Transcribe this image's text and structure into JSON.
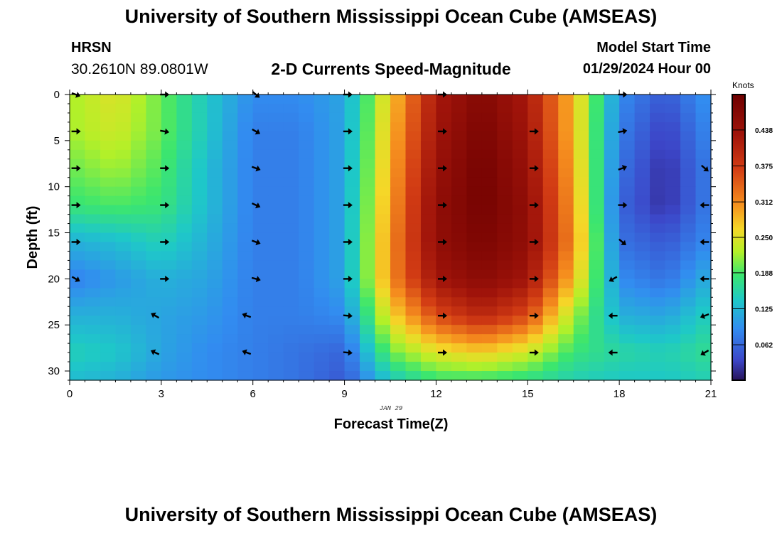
{
  "header": {
    "title": "University of Southern Mississippi Ocean Cube (AMSEAS)",
    "station": "HRSN",
    "coordinates": "30.2610N  89.0801W",
    "subtitle": "2-D Currents Speed-Magnitude",
    "model_start_label": "Model Start Time",
    "model_start_value": "01/29/2024 Hour 00"
  },
  "footer": {
    "title": "University of Southern Mississippi Ocean Cube (AMSEAS)"
  },
  "chart_data": {
    "type": "heatmap",
    "title": "2-D Currents Speed-Magnitude",
    "xlabel": "Forecast Time(Z)",
    "ylabel": "Depth (ft)",
    "date_label": "JAN 29",
    "xlim": [
      0,
      21
    ],
    "ylim": [
      0,
      31
    ],
    "x_ticks": [
      0,
      3,
      6,
      9,
      12,
      15,
      18,
      21
    ],
    "y_ticks": [
      0,
      5,
      10,
      15,
      20,
      25,
      30
    ],
    "colorbar": {
      "label": "Knots",
      "range": [
        0,
        0.5
      ],
      "ticks": [
        0.062,
        0.125,
        0.188,
        0.25,
        0.312,
        0.375,
        0.438
      ],
      "tick_labels": [
        "0.062",
        "0.125",
        "0.188",
        "0.250",
        "0.312",
        "0.375",
        "0.438"
      ]
    },
    "time_hours": [
      0,
      1.5,
      3,
      4.5,
      6,
      7.5,
      9,
      10.5,
      12,
      13.5,
      15,
      16.5,
      18,
      19.5,
      21
    ],
    "depths_ft": [
      0,
      4,
      8,
      12,
      16,
      20,
      24,
      28,
      31
    ],
    "speed_knots": [
      [
        0.22,
        0.25,
        0.2,
        0.14,
        0.09,
        0.09,
        0.11,
        0.27,
        0.42,
        0.47,
        0.42,
        0.28,
        0.09,
        0.05,
        0.1
      ],
      [
        0.22,
        0.24,
        0.2,
        0.14,
        0.08,
        0.08,
        0.11,
        0.28,
        0.43,
        0.48,
        0.43,
        0.28,
        0.08,
        0.03,
        0.09
      ],
      [
        0.2,
        0.22,
        0.19,
        0.13,
        0.08,
        0.08,
        0.11,
        0.29,
        0.44,
        0.49,
        0.44,
        0.29,
        0.07,
        0.02,
        0.08
      ],
      [
        0.18,
        0.19,
        0.18,
        0.13,
        0.08,
        0.08,
        0.11,
        0.3,
        0.45,
        0.49,
        0.45,
        0.3,
        0.06,
        0.02,
        0.08
      ],
      [
        0.12,
        0.13,
        0.15,
        0.12,
        0.08,
        0.08,
        0.11,
        0.31,
        0.45,
        0.48,
        0.45,
        0.31,
        0.07,
        0.05,
        0.09
      ],
      [
        0.08,
        0.1,
        0.12,
        0.11,
        0.08,
        0.08,
        0.11,
        0.31,
        0.43,
        0.46,
        0.43,
        0.28,
        0.09,
        0.07,
        0.12
      ],
      [
        0.12,
        0.12,
        0.11,
        0.1,
        0.08,
        0.08,
        0.09,
        0.26,
        0.36,
        0.4,
        0.36,
        0.22,
        0.12,
        0.11,
        0.15
      ],
      [
        0.15,
        0.14,
        0.11,
        0.09,
        0.08,
        0.07,
        0.06,
        0.2,
        0.25,
        0.27,
        0.24,
        0.18,
        0.16,
        0.15,
        0.17
      ],
      [
        0.13,
        0.12,
        0.1,
        0.09,
        0.08,
        0.07,
        0.05,
        0.14,
        0.18,
        0.18,
        0.17,
        0.15,
        0.14,
        0.14,
        0.15
      ]
    ],
    "vectors": [
      {
        "t": 0.2,
        "d": 0,
        "angle": 20
      },
      {
        "t": 3.1,
        "d": 0,
        "angle": 0
      },
      {
        "t": 6.1,
        "d": 0,
        "angle": 40
      },
      {
        "t": 9.1,
        "d": 0,
        "angle": 0
      },
      {
        "t": 12.2,
        "d": 0,
        "angle": 0
      },
      {
        "t": 18.1,
        "d": 0,
        "angle": 0
      },
      {
        "t": 0.2,
        "d": 4,
        "angle": 0
      },
      {
        "t": 3.1,
        "d": 4,
        "angle": 10
      },
      {
        "t": 6.1,
        "d": 4,
        "angle": 30
      },
      {
        "t": 9.1,
        "d": 4,
        "angle": 0
      },
      {
        "t": 12.2,
        "d": 4,
        "angle": 0
      },
      {
        "t": 15.2,
        "d": 4,
        "angle": 0
      },
      {
        "t": 18.1,
        "d": 4,
        "angle": -10
      },
      {
        "t": 0.2,
        "d": 8,
        "angle": 0
      },
      {
        "t": 3.1,
        "d": 8,
        "angle": 0
      },
      {
        "t": 6.1,
        "d": 8,
        "angle": 20
      },
      {
        "t": 9.1,
        "d": 8,
        "angle": 0
      },
      {
        "t": 12.2,
        "d": 8,
        "angle": 0
      },
      {
        "t": 15.2,
        "d": 8,
        "angle": 0
      },
      {
        "t": 18.1,
        "d": 8,
        "angle": -20
      },
      {
        "t": 20.8,
        "d": 8,
        "angle": 40
      },
      {
        "t": 0.2,
        "d": 12,
        "angle": 0
      },
      {
        "t": 3.1,
        "d": 12,
        "angle": 0
      },
      {
        "t": 6.1,
        "d": 12,
        "angle": 25
      },
      {
        "t": 9.1,
        "d": 12,
        "angle": 0
      },
      {
        "t": 12.2,
        "d": 12,
        "angle": 0
      },
      {
        "t": 15.2,
        "d": 12,
        "angle": 0
      },
      {
        "t": 18.1,
        "d": 12,
        "angle": 0
      },
      {
        "t": 20.8,
        "d": 12,
        "angle": 180
      },
      {
        "t": 0.2,
        "d": 16,
        "angle": 0
      },
      {
        "t": 3.1,
        "d": 16,
        "angle": 0
      },
      {
        "t": 6.1,
        "d": 16,
        "angle": 20
      },
      {
        "t": 9.1,
        "d": 16,
        "angle": 0
      },
      {
        "t": 12.2,
        "d": 16,
        "angle": 0
      },
      {
        "t": 15.2,
        "d": 16,
        "angle": 0
      },
      {
        "t": 18.1,
        "d": 16,
        "angle": 40
      },
      {
        "t": 20.8,
        "d": 16,
        "angle": 180
      },
      {
        "t": 0.2,
        "d": 20,
        "angle": 30
      },
      {
        "t": 3.1,
        "d": 20,
        "angle": 0
      },
      {
        "t": 6.1,
        "d": 20,
        "angle": 15
      },
      {
        "t": 9.1,
        "d": 20,
        "angle": 0
      },
      {
        "t": 12.2,
        "d": 20,
        "angle": 0
      },
      {
        "t": 15.2,
        "d": 20,
        "angle": 0
      },
      {
        "t": 17.8,
        "d": 20,
        "angle": 150
      },
      {
        "t": 20.8,
        "d": 20,
        "angle": 180
      },
      {
        "t": 2.8,
        "d": 24,
        "angle": 210
      },
      {
        "t": 5.8,
        "d": 24,
        "angle": 200
      },
      {
        "t": 9.1,
        "d": 24,
        "angle": 5
      },
      {
        "t": 12.2,
        "d": 24,
        "angle": 0
      },
      {
        "t": 15.2,
        "d": 24,
        "angle": 0
      },
      {
        "t": 17.8,
        "d": 24,
        "angle": 180
      },
      {
        "t": 20.8,
        "d": 24,
        "angle": 160
      },
      {
        "t": 2.8,
        "d": 28,
        "angle": 205
      },
      {
        "t": 5.8,
        "d": 28,
        "angle": 200
      },
      {
        "t": 9.1,
        "d": 28,
        "angle": 5
      },
      {
        "t": 12.2,
        "d": 28,
        "angle": 0
      },
      {
        "t": 15.2,
        "d": 28,
        "angle": 0
      },
      {
        "t": 17.8,
        "d": 28,
        "angle": 180
      },
      {
        "t": 20.8,
        "d": 28,
        "angle": 150
      }
    ]
  }
}
